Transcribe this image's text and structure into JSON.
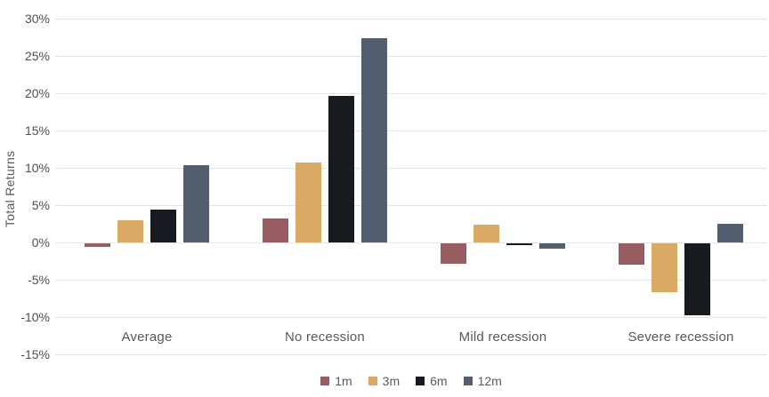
{
  "chart_data": {
    "type": "bar",
    "title": "",
    "ylabel": "Total Returns",
    "xlabel": "",
    "categories": [
      "Average",
      "No recession",
      "Mild recession",
      "Severe recession"
    ],
    "series": [
      {
        "name": "1m",
        "color": "#985d60",
        "values": [
          -0.5,
          3.2,
          -2.7,
          -2.8
        ]
      },
      {
        "name": "3m",
        "color": "#d9aa63",
        "values": [
          3.0,
          10.7,
          2.4,
          -6.6
        ]
      },
      {
        "name": "6m",
        "color": "#171a20",
        "values": [
          4.4,
          19.6,
          -0.2,
          -9.6
        ]
      },
      {
        "name": "12m",
        "color": "#535f6e",
        "values": [
          10.4,
          27.4,
          -0.7,
          2.5
        ]
      }
    ],
    "ylim": [
      -15,
      30
    ],
    "ytick_step": 5,
    "yticks": [
      30,
      25,
      20,
      15,
      10,
      5,
      0,
      -5,
      -10,
      -15
    ],
    "ytick_labels": [
      "30%",
      "25%",
      "20%",
      "15%",
      "10%",
      "5%",
      "0%",
      "-5%",
      "-10%",
      "-15%"
    ],
    "grid": "horizontal",
    "legend_position": "bottom",
    "colors": {
      "background": "#ffffff",
      "gridline": "#e3e3e3",
      "axis_text": "#4f4f4f",
      "category_text": "#595959",
      "legend_text": "#595959"
    }
  }
}
